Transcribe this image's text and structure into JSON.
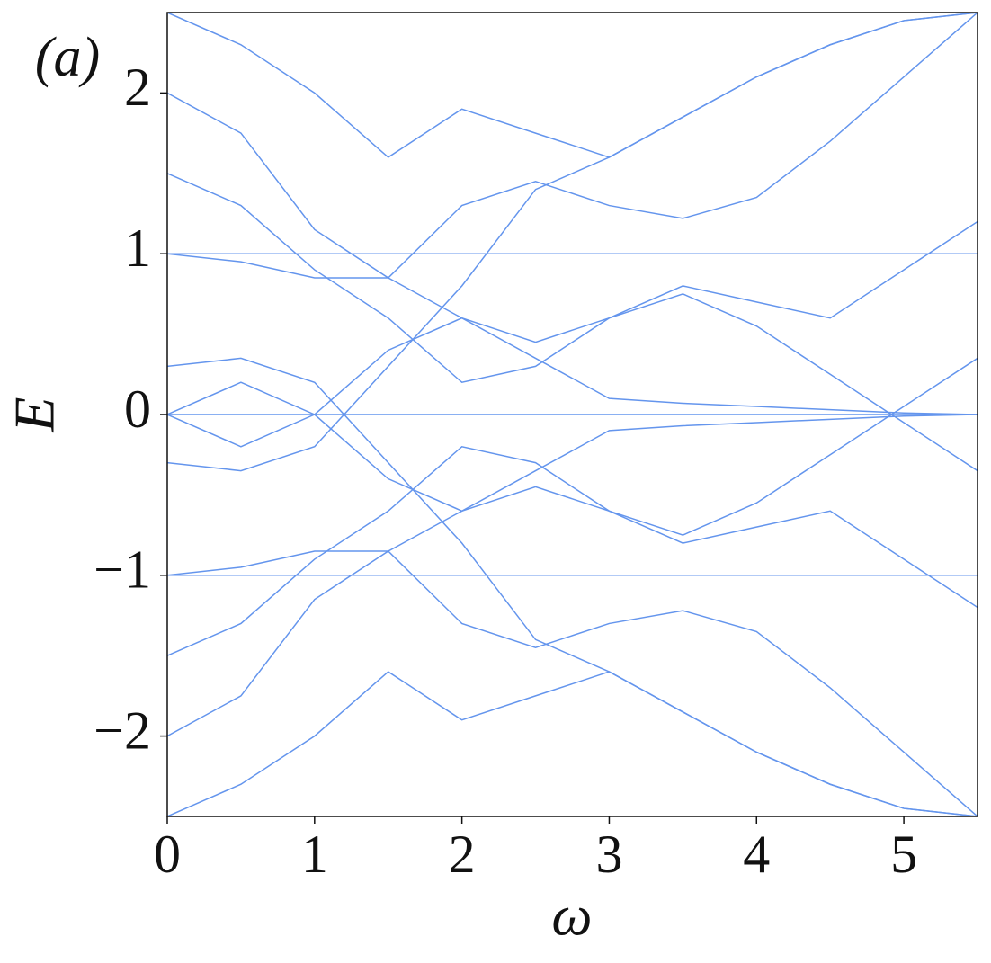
{
  "chart_data": {
    "type": "line",
    "annotation": "(a)",
    "x_label": "ω",
    "y_label": "E",
    "x": [
      0,
      0.5,
      1,
      1.5,
      2,
      2.5,
      3,
      3.5,
      4,
      4.5,
      5,
      5.5
    ],
    "series": [
      {
        "color": "#6495ed",
        "values": [
          0,
          0,
          0,
          0,
          0,
          0,
          0,
          0,
          0,
          0,
          0,
          0
        ]
      },
      {
        "color": "#6495ed",
        "values": [
          1,
          0.95,
          0.85,
          0.85,
          0.6,
          0.45,
          0.6,
          0.75,
          0.55,
          0.25,
          -0.05,
          -0.35
        ]
      },
      {
        "color": "#6495ed",
        "values": [
          -1,
          -0.95,
          -0.85,
          -0.85,
          -0.6,
          -0.45,
          -0.6,
          -0.75,
          -0.55,
          -0.25,
          0.05,
          0.35
        ]
      },
      {
        "color": "#6495ed",
        "values": [
          2,
          1.75,
          1.15,
          0.85,
          1.3,
          1.45,
          1.3,
          1.22,
          1.35,
          1.7,
          2.1,
          2.5
        ]
      },
      {
        "color": "#6495ed",
        "values": [
          -2,
          -1.75,
          -1.15,
          -0.85,
          -1.3,
          -1.45,
          -1.3,
          -1.22,
          -1.35,
          -1.7,
          -2.1,
          -2.5
        ]
      },
      {
        "color": "#6495ed",
        "values": [
          1,
          1,
          1,
          1,
          1,
          1,
          1,
          1,
          1,
          1,
          1,
          1
        ]
      },
      {
        "color": "#6495ed",
        "values": [
          -1,
          -1,
          -1,
          -1,
          -1,
          -1,
          -1,
          -1,
          -1,
          -1,
          -1,
          -1
        ]
      },
      {
        "color": "#6495ed",
        "values": [
          0.3,
          0.35,
          0.2,
          -0.3,
          -0.8,
          -1.4,
          -1.6,
          -1.85,
          -2.1,
          -2.3,
          -2.45,
          -2.5
        ]
      },
      {
        "color": "#6495ed",
        "values": [
          -0.3,
          -0.35,
          -0.2,
          0.3,
          0.8,
          1.4,
          1.6,
          1.85,
          2.1,
          2.3,
          2.45,
          2.5
        ]
      },
      {
        "color": "#6495ed",
        "values": [
          0,
          0.2,
          0,
          0.4,
          0.6,
          0.35,
          0.1,
          0.07,
          0.05,
          0.03,
          0.01,
          0
        ]
      },
      {
        "color": "#6495ed",
        "values": [
          0,
          -0.2,
          0,
          -0.4,
          -0.6,
          -0.35,
          -0.1,
          -0.07,
          -0.05,
          -0.03,
          -0.01,
          0
        ]
      },
      {
        "color": "#6495ed",
        "values": [
          2.5,
          2.3,
          2,
          1.6,
          1.9,
          1.75,
          1.6,
          1.85,
          2.1,
          2.3,
          2.45,
          2.5
        ]
      },
      {
        "color": "#6495ed",
        "values": [
          -2.5,
          -2.3,
          -2,
          -1.6,
          -1.9,
          -1.75,
          -1.6,
          -1.85,
          -2.1,
          -2.3,
          -2.45,
          -2.5
        ]
      },
      {
        "color": "#6495ed",
        "values": [
          1.5,
          1.3,
          0.9,
          0.6,
          0.2,
          0.3,
          0.6,
          0.8,
          0.7,
          0.6,
          0.9,
          1.2
        ]
      },
      {
        "color": "#6495ed",
        "values": [
          -1.5,
          -1.3,
          -0.9,
          -0.6,
          -0.2,
          -0.3,
          -0.6,
          -0.8,
          -0.7,
          -0.6,
          -0.9,
          -1.2
        ]
      }
    ],
    "xlim": [
      0,
      5.5
    ],
    "ylim": [
      -2.5,
      2.5
    ],
    "xticks": [
      0,
      1,
      2,
      3,
      4,
      5
    ],
    "yticks": [
      {
        "value": -2,
        "label": "−2"
      },
      {
        "value": -1,
        "label": "−1"
      },
      0,
      1,
      2
    ],
    "grid": false
  }
}
